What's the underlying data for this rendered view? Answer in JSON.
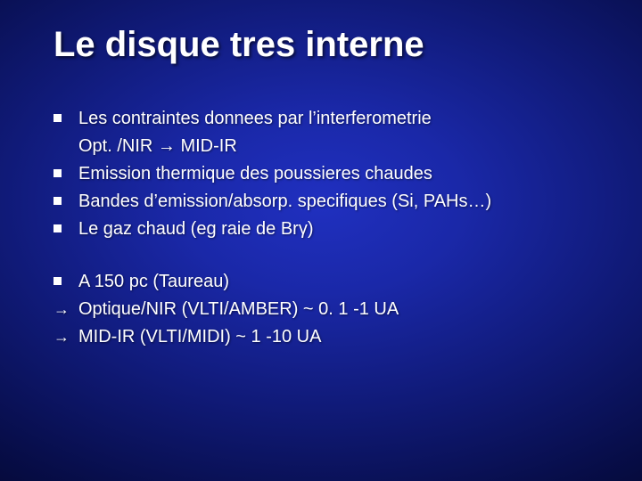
{
  "slide": {
    "background": {
      "gradient_center": "#2030c0",
      "gradient_mid": "#101a78",
      "gradient_edge": "#000000"
    },
    "title": {
      "text": "Le disque tres interne",
      "color": "#ffffff",
      "fontsize_pt": 40,
      "fontweight": "bold"
    },
    "body_text_color": "#ffffff",
    "body_fontsize_pt": 20,
    "groups": [
      {
        "lines": [
          {
            "bullet": "square",
            "text": "Les contraintes donnees par l’interferometrie"
          },
          {
            "bullet": "none",
            "text": "Opt. /NIR → MID-IR"
          },
          {
            "bullet": "square",
            "text": "Emission thermique des poussieres chaudes"
          },
          {
            "bullet": "square",
            "text": "Bandes d’emission/absorp. specifiques (Si, PAHs…)"
          },
          {
            "bullet": "square",
            "text": "Le gaz chaud (eg raie de Brγ)"
          }
        ]
      },
      {
        "lines": [
          {
            "bullet": "square",
            "text": "A 150 pc (Taureau)"
          },
          {
            "bullet": "arrow",
            "text": "Optique/NIR (VLTI/AMBER) ~ 0. 1 -1 UA"
          },
          {
            "bullet": "arrow",
            "text": "MID-IR (VLTI/MIDI) ~ 1 -10 UA"
          }
        ]
      }
    ]
  }
}
